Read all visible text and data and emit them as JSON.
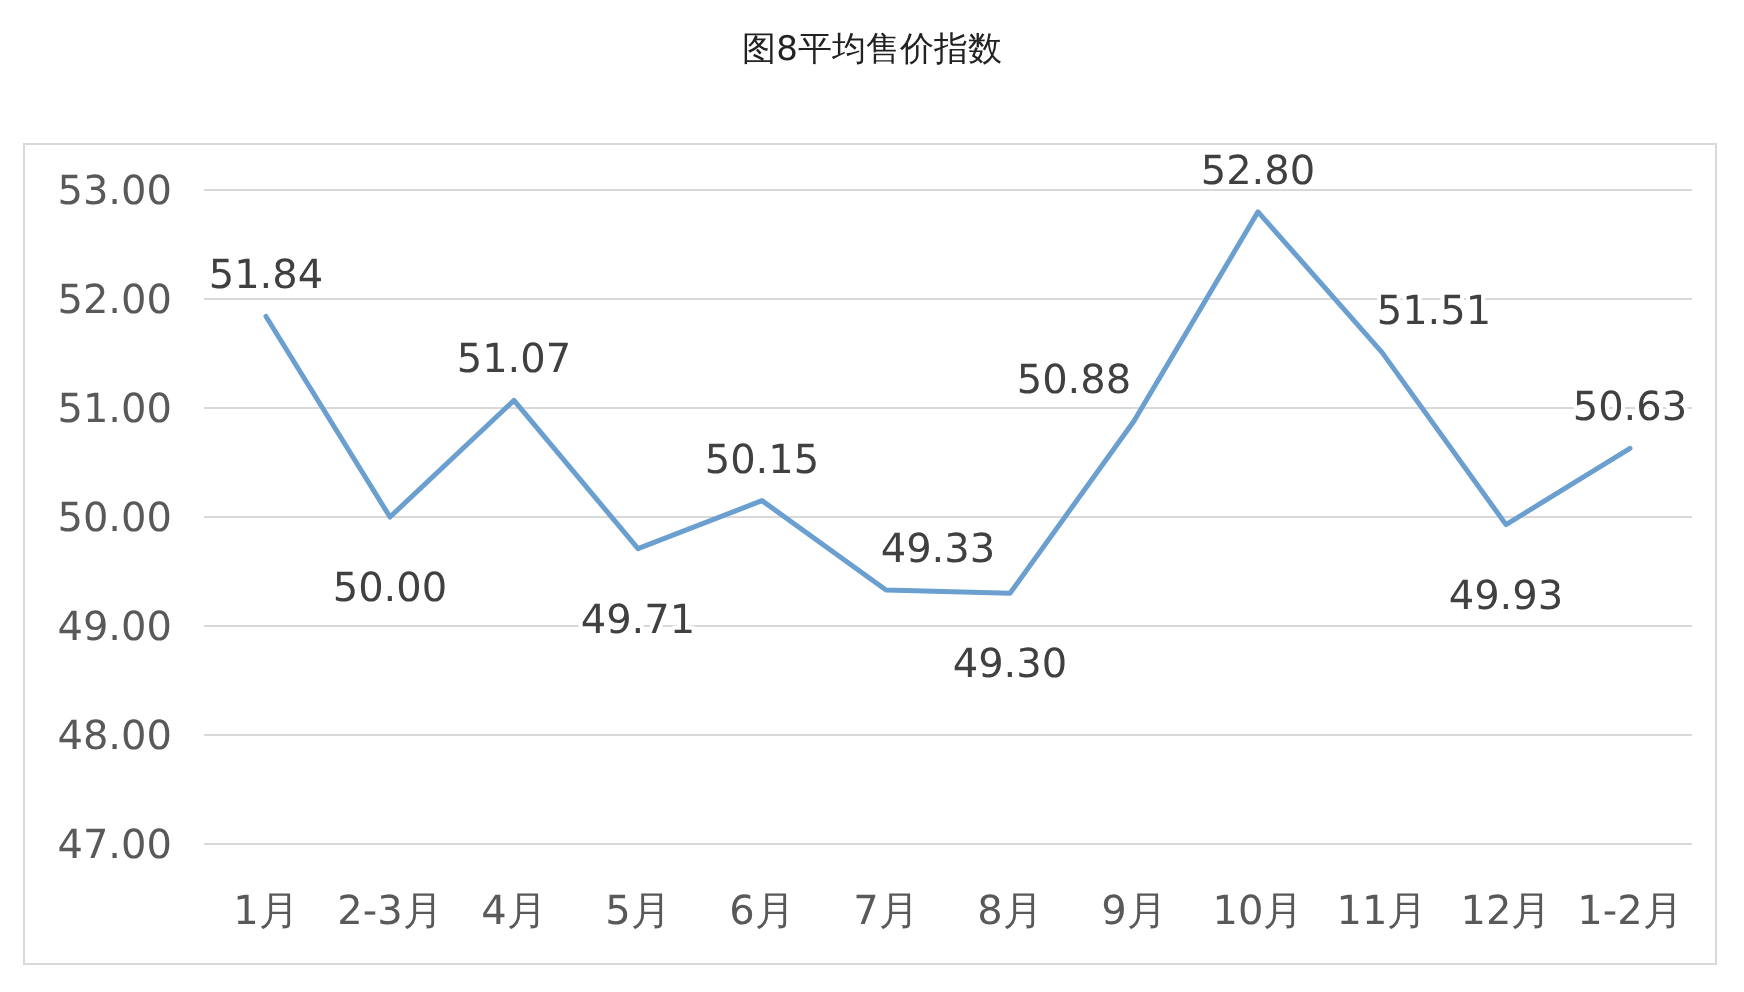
{
  "chart_data": {
    "type": "line",
    "title": "图8平均售价指数",
    "categories": [
      "1月",
      "2-3月",
      "4月",
      "5月",
      "6月",
      "7月",
      "8月",
      "9月",
      "10月",
      "11月",
      "12月",
      "1-2月"
    ],
    "series": [
      {
        "color": "#6a9fcf",
        "values": [
          51.84,
          50.0,
          51.07,
          49.71,
          50.15,
          49.33,
          49.3,
          50.88,
          52.8,
          51.51,
          49.93,
          50.63
        ],
        "value_labels": [
          "51.84",
          "50.00",
          "51.07",
          "49.71",
          "50.15",
          "49.33",
          "49.30",
          "50.88",
          "52.80",
          "51.51",
          "49.93",
          "50.63"
        ]
      }
    ],
    "ylim": [
      47,
      53
    ],
    "yticks": [
      {
        "value": 47,
        "label": "47.00"
      },
      {
        "value": 48,
        "label": "48.00"
      },
      {
        "value": 49,
        "label": "49.00"
      },
      {
        "value": 50,
        "label": "50.00"
      },
      {
        "value": 51,
        "label": "51.00"
      },
      {
        "value": 52,
        "label": "52.00"
      },
      {
        "value": 53,
        "label": "53.00"
      }
    ],
    "grid": "y",
    "marker": "none",
    "line_style": "solid"
  }
}
